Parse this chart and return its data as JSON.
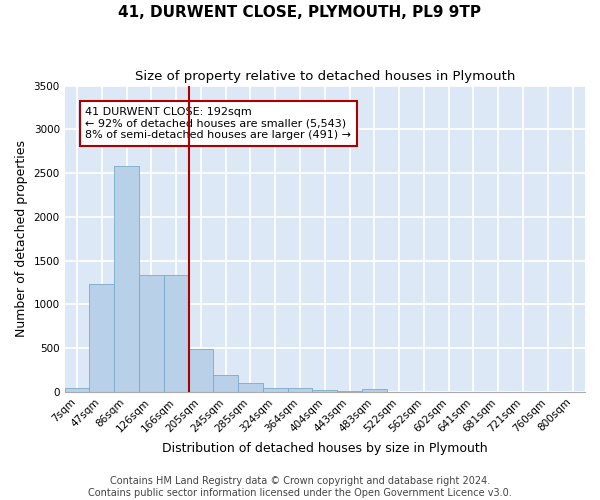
{
  "title": "41, DURWENT CLOSE, PLYMOUTH, PL9 9TP",
  "subtitle": "Size of property relative to detached houses in Plymouth",
  "xlabel": "Distribution of detached houses by size in Plymouth",
  "ylabel": "Number of detached properties",
  "categories": [
    "7sqm",
    "47sqm",
    "86sqm",
    "126sqm",
    "166sqm",
    "205sqm",
    "245sqm",
    "285sqm",
    "324sqm",
    "364sqm",
    "404sqm",
    "443sqm",
    "483sqm",
    "522sqm",
    "562sqm",
    "602sqm",
    "641sqm",
    "681sqm",
    "721sqm",
    "760sqm",
    "800sqm"
  ],
  "values": [
    50,
    1230,
    2580,
    1340,
    1340,
    490,
    195,
    105,
    45,
    40,
    20,
    15,
    30,
    0,
    0,
    0,
    0,
    0,
    0,
    0,
    0
  ],
  "bar_color": "#b8d0e8",
  "bar_edge_color": "#7aaac8",
  "annotation_text": "41 DURWENT CLOSE: 192sqm\n← 92% of detached houses are smaller (5,543)\n8% of semi-detached houses are larger (491) →",
  "box_color": "#aa0000",
  "line_x_index": 5,
  "footer_line1": "Contains HM Land Registry data © Crown copyright and database right 2024.",
  "footer_line2": "Contains public sector information licensed under the Open Government Licence v3.0.",
  "ylim": [
    0,
    3500
  ],
  "yticks": [
    0,
    500,
    1000,
    1500,
    2000,
    2500,
    3000,
    3500
  ],
  "background_color": "#dce8f5",
  "grid_color": "#ffffff",
  "title_fontsize": 11,
  "subtitle_fontsize": 9.5,
  "xlabel_fontsize": 9,
  "ylabel_fontsize": 9,
  "tick_fontsize": 7.5,
  "footer_fontsize": 7,
  "ann_fontsize": 8
}
